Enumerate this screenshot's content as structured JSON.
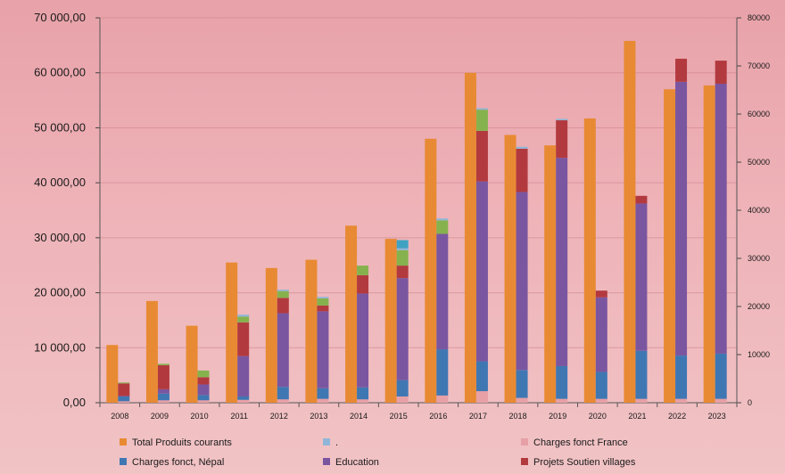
{
  "colors": {
    "total": "#e88a33",
    "dot": "#8fb6d8",
    "france": "#e6a0a6",
    "nepal": "#3f77b3",
    "education": "#7a56a0",
    "projets": "#b23a3f",
    "green": "#86b24e",
    "teal": "#40a2c3"
  },
  "chart_data": {
    "type": "bar",
    "categories": [
      "2008",
      "2009",
      "2010",
      "2011",
      "2012",
      "2013",
      "2014",
      "2015",
      "2016",
      "2017",
      "2018",
      "2019",
      "2020",
      "2021",
      "2022",
      "2023"
    ],
    "y_left": {
      "ylim": [
        0,
        70000
      ],
      "ticks": [
        0,
        10000,
        20000,
        30000,
        40000,
        50000,
        60000,
        70000
      ],
      "tick_labels": [
        "0,00",
        "10 000,00",
        "20 000,00",
        "30 000,00",
        "40 000,00",
        "50 000,00",
        "60 000,00",
        "70 000,00"
      ]
    },
    "y_right": {
      "ylim": [
        0,
        80000
      ],
      "ticks": [
        0,
        10000,
        20000,
        30000,
        40000,
        50000,
        60000,
        70000,
        80000
      ],
      "tick_labels": [
        "0",
        "10000",
        "20000",
        "30000",
        "40000",
        "50000",
        "60000",
        "70000",
        "80000"
      ]
    },
    "total_series": {
      "name": "Total Produits courants",
      "axis": "left",
      "values": [
        10500,
        18500,
        14000,
        25500,
        24500,
        26000,
        32200,
        29800,
        48000,
        60000,
        48700,
        46800,
        51700,
        65800,
        57000,
        57700
      ]
    },
    "stacked_axis": "right",
    "stacked_series": [
      {
        "name": "Charges fonct France",
        "color_key": "france",
        "values": [
          300,
          500,
          500,
          600,
          700,
          800,
          700,
          1300,
          1500,
          2400,
          1000,
          800,
          800,
          800,
          800,
          800
        ]
      },
      {
        "name": "Charges fonct, Népal",
        "color_key": "nepal",
        "values": [
          1000,
          1400,
          1100,
          700,
          2600,
          2200,
          2500,
          3400,
          9600,
          6200,
          5800,
          6800,
          5600,
          10000,
          9000,
          9400
        ]
      },
      {
        "name": "Education",
        "color_key": "education",
        "values": [
          100,
          900,
          2200,
          8400,
          15300,
          16000,
          19500,
          21200,
          24000,
          37400,
          37000,
          43300,
          15500,
          30600,
          56900,
          56100
        ]
      },
      {
        "name": "Projets Soutien villages",
        "color_key": "projets",
        "values": [
          2600,
          5000,
          1500,
          7000,
          3200,
          1200,
          3800,
          2600,
          0,
          10500,
          9000,
          7800,
          1400,
          1600,
          4800,
          4800
        ]
      },
      {
        "name": "",
        "color_key": "green",
        "values": [
          200,
          300,
          1400,
          1200,
          1400,
          1500,
          2000,
          3200,
          2800,
          4400,
          0,
          0,
          0,
          0,
          0,
          0
        ]
      },
      {
        "name": ".",
        "color_key": "dot",
        "values": [
          0,
          0,
          0,
          400,
          300,
          300,
          0,
          400,
          400,
          300,
          400,
          300,
          0,
          0,
          0,
          0
        ]
      },
      {
        "name": "",
        "color_key": "teal",
        "values": [
          0,
          0,
          0,
          0,
          0,
          0,
          0,
          1700,
          0,
          0,
          0,
          0,
          0,
          0,
          0,
          0
        ]
      }
    ],
    "legend": [
      {
        "label": "Total Produits courants",
        "color_key": "total"
      },
      {
        "label": ".",
        "color_key": "dot"
      },
      {
        "label": "Charges fonct France",
        "color_key": "france"
      },
      {
        "label": "Charges fonct, Népal",
        "color_key": "nepal"
      },
      {
        "label": "Education",
        "color_key": "education"
      },
      {
        "label": "Projets Soutien villages",
        "color_key": "projets"
      }
    ],
    "legend_position": "bottom",
    "grid": true
  }
}
